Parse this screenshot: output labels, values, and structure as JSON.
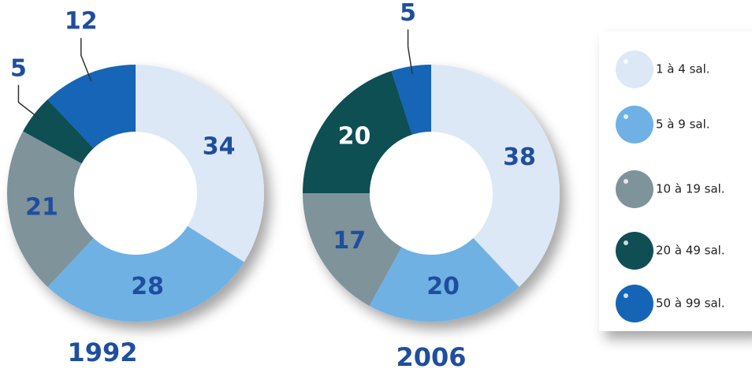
{
  "legend": {
    "categories": [
      "1 à 4 sal.",
      "5 à 9 sal.",
      "10 à 19 sal.",
      "20 à 49 sal.",
      "50 à 99 sal."
    ],
    "colors": [
      "#dce8f5",
      "#6fb1e4",
      "#7e939a",
      "#0f4f53",
      "#1565b6"
    ]
  },
  "chart_data": [
    {
      "type": "pie",
      "title": "1992",
      "values": [
        34,
        28,
        21,
        5,
        12
      ]
    },
    {
      "type": "pie",
      "title": "2006",
      "values": [
        38,
        20,
        17,
        20,
        5
      ]
    }
  ]
}
